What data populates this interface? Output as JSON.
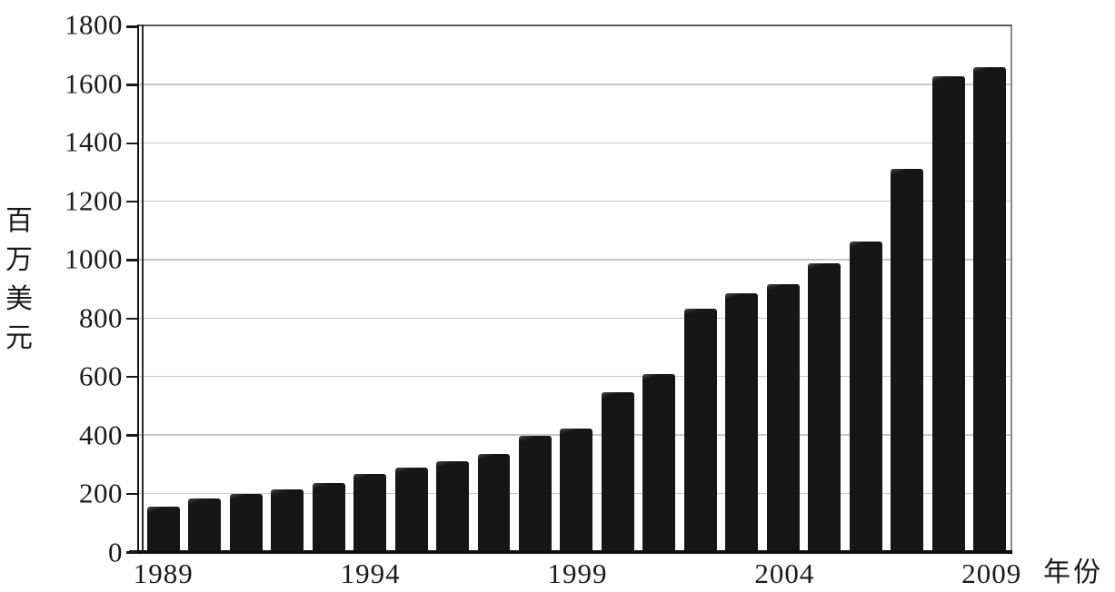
{
  "chart_data": {
    "type": "bar",
    "title": "",
    "ylabel": "百万美元",
    "xlabel": "年份",
    "categories": [
      "1989",
      "1990",
      "1991",
      "1992",
      "1993",
      "1994",
      "1995",
      "1996",
      "1997",
      "1998",
      "1999",
      "2000",
      "2001",
      "2002",
      "2003",
      "2004",
      "2005",
      "2006",
      "2007",
      "2008",
      "2009"
    ],
    "values": [
      155,
      185,
      198,
      215,
      235,
      268,
      290,
      312,
      335,
      397,
      423,
      548,
      610,
      833,
      886,
      918,
      990,
      1062,
      1313,
      1628,
      1660
    ],
    "y_ticks": [
      0,
      200,
      400,
      600,
      800,
      1000,
      1200,
      1400,
      1600,
      1800
    ],
    "x_tick_labels": [
      "1989",
      "1994",
      "1999",
      "2004",
      "2009"
    ],
    "ylim": [
      0,
      1800
    ],
    "grid": "horizontal-light-gray",
    "legend": "none",
    "bar_color": "#161616",
    "gridline_color": "#c8c8c8",
    "text_color": "#1a1a1a"
  }
}
